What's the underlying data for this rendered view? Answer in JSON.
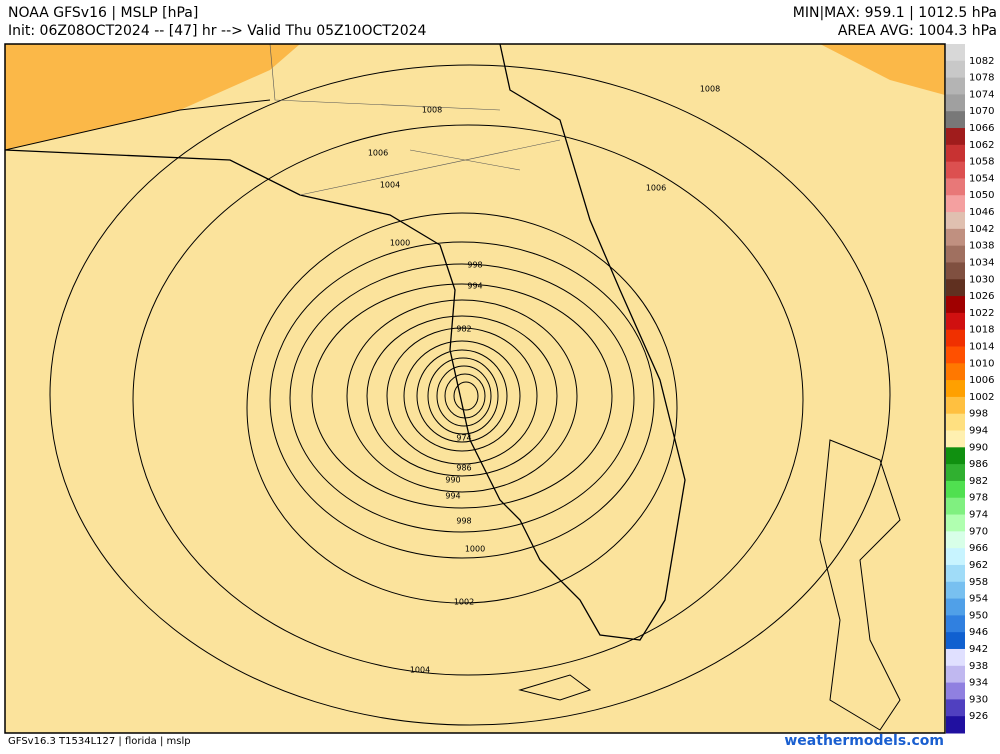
{
  "header": {
    "left": [
      "NOAA GFSv16 |  MSLP [hPa]",
      "Init: 06Z08OCT2024 -- [47] hr --> Valid Thu 05Z10OCT2024"
    ],
    "right": [
      "MIN|MAX: 959.1 | 1012.5 hPa",
      "AREA AVG: 1004.3 hPa"
    ]
  },
  "colorbar": {
    "labels": [
      "1082",
      "1078",
      "1074",
      "1070",
      "1066",
      "1062",
      "1058",
      "1054",
      "1050",
      "1046",
      "1042",
      "1038",
      "1034",
      "1030",
      "1026",
      "1022",
      "1018",
      "1014",
      "1010",
      "1006",
      "1002",
      "998",
      "994",
      "990",
      "986",
      "982",
      "978",
      "974",
      "970",
      "966",
      "962",
      "958",
      "954",
      "950",
      "946",
      "942",
      "938",
      "934",
      "930",
      "926"
    ],
    "colors": [
      "#d8d8d8",
      "#c8c8c8",
      "#b4b4b4",
      "#a0a0a0",
      "#787878",
      "#a01c1c",
      "#c83232",
      "#dc5050",
      "#e87878",
      "#f4a0a0",
      "#e0c0b0",
      "#c09080",
      "#a07060",
      "#805040",
      "#603020",
      "#a00000",
      "#d01010",
      "#f03000",
      "#ff5000",
      "#ff7800",
      "#ffa000",
      "#ffc040",
      "#ffe080",
      "#fff0b0",
      "#109010",
      "#30b030",
      "#50e050",
      "#80f080",
      "#b0ffb0",
      "#d8ffe8",
      "#c8f4ff",
      "#a0dcf8",
      "#78c0f0",
      "#50a0e8",
      "#3080e0",
      "#1060d0",
      "#e0e0ff",
      "#c0b8f0",
      "#9080e0",
      "#5040c0",
      "#2010a0"
    ]
  },
  "contour_labels": [
    "1008",
    "1008",
    "1006",
    "1006",
    "1004",
    "1000",
    "998",
    "994",
    "982",
    "974",
    "986",
    "990",
    "994",
    "998",
    "1000",
    "1002",
    "1004"
  ],
  "footer": {
    "left": "GFSv16.3 T1534L127 | florida | mslp",
    "right": "weathermodels.com"
  }
}
